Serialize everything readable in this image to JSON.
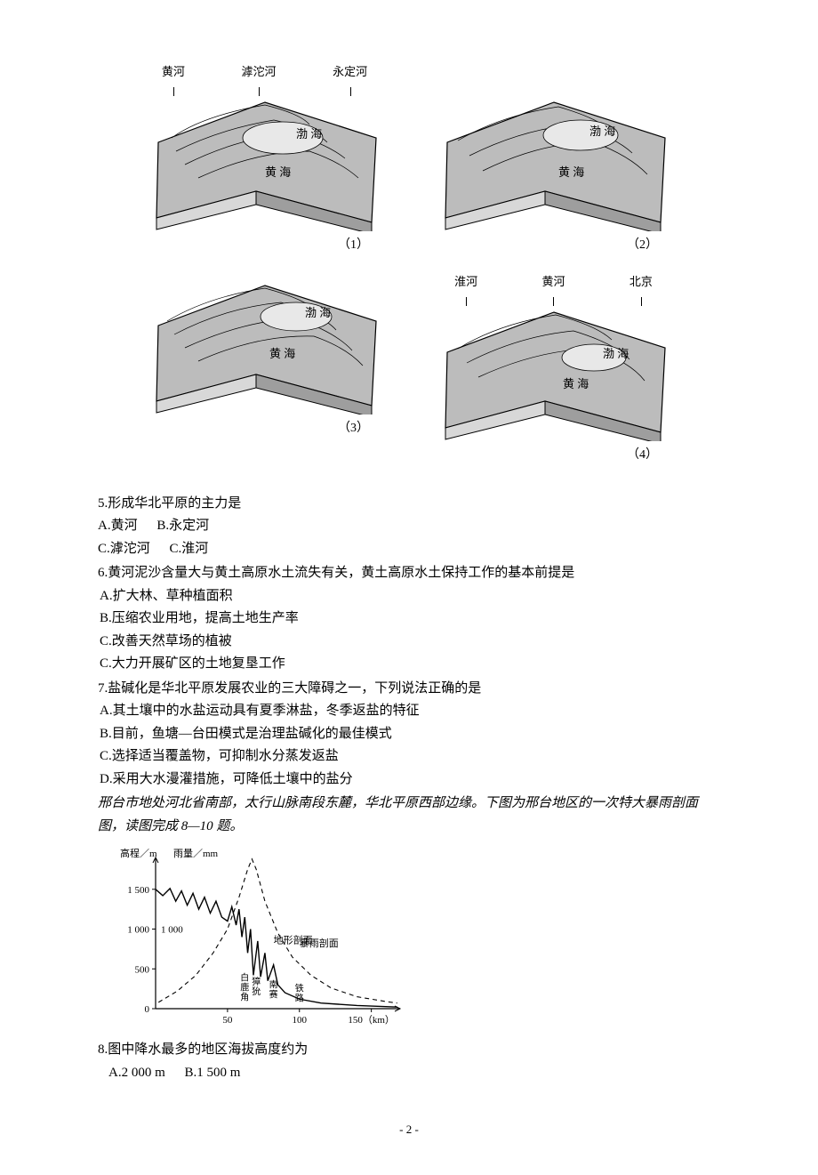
{
  "figure": {
    "top_labels_left": [
      "黄河",
      "滹沱河",
      "永定河"
    ],
    "top_labels_right": [
      "淮河",
      "黄河",
      "北京"
    ],
    "sea_labels": {
      "bohai": "渤  海",
      "huanghai": "黄  海"
    },
    "panels": [
      "（1）",
      "（2）",
      "（3）",
      "（4）"
    ],
    "terrain_fill": "#b0b0b0",
    "terrain_stroke": "#000000",
    "background": "#ffffff"
  },
  "q5": {
    "stem": "5.形成华北平原的主力是",
    "opts": [
      "A.黄河",
      "B.永定河",
      "C.滹沱河",
      "C.淮河"
    ]
  },
  "q6": {
    "stem": "6.黄河泥沙含量大与黄土高原水土流失有关，黄土高原水土保持工作的基本前提是",
    "opts": [
      "A.扩大林、草种植面积",
      "B.压缩农业用地，提高土地生产率",
      "C.改善天然草场的植被",
      "C.大力开展矿区的土地复垦工作"
    ]
  },
  "q7": {
    "stem": "7.盐碱化是华北平原发展农业的三大障碍之一，下列说法正确的是",
    "opts": [
      "A.其土壤中的水盐运动具有夏季淋盐，冬季返盐的特征",
      "B.目前，鱼塘—台田模式是治理盐碱化的最佳模式",
      "C.选择适当覆盖物，可抑制水分蒸发返盐",
      "D.采用大水漫灌措施，可降低土壤中的盐分"
    ]
  },
  "intro8": "邢台市地处河北省南部，太行山脉南段东麓，华北平原西部边缘。下图为邢台地区的一次特大暴雨剖面图，读图完成 8—10 题。",
  "chart": {
    "axis_left_label": "高程／m",
    "axis_right_label": "雨量／mm",
    "y_ticks": [
      0,
      500,
      1000,
      1500
    ],
    "y_tick_labels": [
      "0",
      "500",
      "1 000",
      "1 500"
    ],
    "y_secondary_label": "1 000",
    "x_ticks": [
      50,
      100,
      150
    ],
    "x_tick_labels": [
      "50",
      "100",
      "150（km）"
    ],
    "terrain_label": "地形剖面",
    "rain_label": "暴雨剖面",
    "place_labels": [
      "白鹿角",
      "獐狁",
      "南赛",
      "铁路"
    ],
    "xlim": [
      0,
      170
    ],
    "ylim": [
      0,
      1900
    ],
    "terrain_pts": [
      [
        0,
        1500
      ],
      [
        5,
        1420
      ],
      [
        10,
        1510
      ],
      [
        14,
        1350
      ],
      [
        18,
        1480
      ],
      [
        22,
        1300
      ],
      [
        26,
        1450
      ],
      [
        30,
        1250
      ],
      [
        34,
        1400
      ],
      [
        38,
        1200
      ],
      [
        42,
        1350
      ],
      [
        46,
        1150
      ],
      [
        50,
        1100
      ],
      [
        53,
        1280
      ],
      [
        56,
        1050
      ],
      [
        58,
        1250
      ],
      [
        60,
        900
      ],
      [
        62,
        1150
      ],
      [
        64,
        700
      ],
      [
        66,
        1000
      ],
      [
        68,
        420
      ],
      [
        71,
        850
      ],
      [
        73,
        400
      ],
      [
        76,
        700
      ],
      [
        78,
        350
      ],
      [
        82,
        550
      ],
      [
        85,
        300
      ],
      [
        90,
        200
      ],
      [
        100,
        120
      ],
      [
        115,
        70
      ],
      [
        140,
        40
      ],
      [
        168,
        20
      ]
    ],
    "rain_pts": [
      [
        2,
        80
      ],
      [
        15,
        220
      ],
      [
        28,
        420
      ],
      [
        40,
        700
      ],
      [
        50,
        1000
      ],
      [
        58,
        1400
      ],
      [
        64,
        1750
      ],
      [
        67,
        1880
      ],
      [
        70,
        1750
      ],
      [
        76,
        1350
      ],
      [
        85,
        950
      ],
      [
        95,
        650
      ],
      [
        108,
        420
      ],
      [
        122,
        260
      ],
      [
        140,
        150
      ],
      [
        160,
        90
      ],
      [
        168,
        70
      ]
    ],
    "axis_color": "#000000",
    "terrain_color": "#000000",
    "rain_dash": "5,4",
    "font_size_axis": 11,
    "font_size_label": 11
  },
  "q8": {
    "stem": "8.图中降水最多的地区海拔高度约为",
    "opts": [
      "A.2 000 m",
      "B.1 500 m"
    ]
  },
  "page_number": "- 2 -"
}
